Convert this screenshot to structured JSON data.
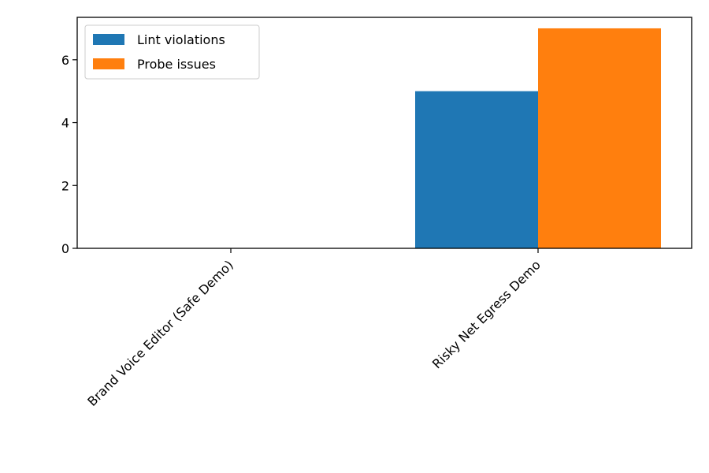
{
  "chart_data": {
    "type": "bar",
    "categories": [
      "Brand Voice Editor (Safe Demo)",
      "Risky Net Egress Demo"
    ],
    "series": [
      {
        "name": "Lint violations",
        "values": [
          0,
          5
        ],
        "color": "#1f77b4"
      },
      {
        "name": "Probe issues",
        "values": [
          0,
          7
        ],
        "color": "#ff7f0e"
      }
    ],
    "title": "",
    "xlabel": "",
    "ylabel": "",
    "ylim": [
      0,
      7.35
    ],
    "yticks": [
      0,
      2,
      4,
      6
    ],
    "legend": "top-left",
    "grid": false
  }
}
